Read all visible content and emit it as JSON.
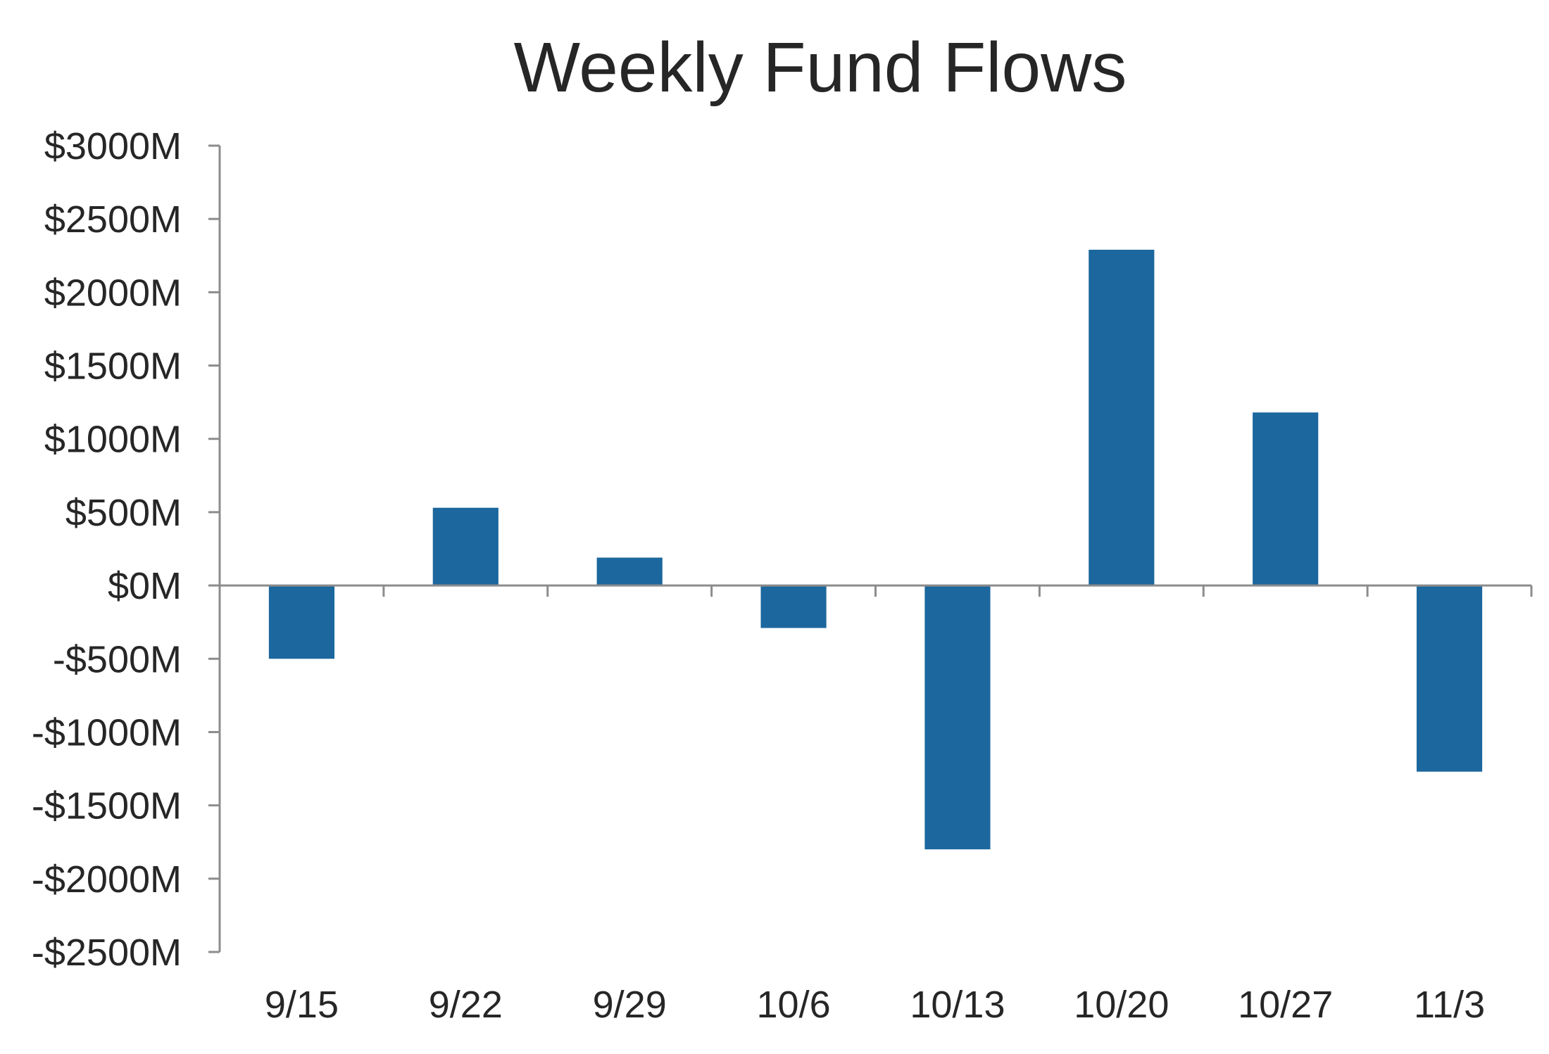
{
  "chart_data": {
    "type": "bar",
    "title": "Weekly Fund Flows",
    "xlabel": "",
    "ylabel": "",
    "categories": [
      "9/15",
      "9/22",
      "9/29",
      "10/6",
      "10/13",
      "10/20",
      "10/27",
      "11/3"
    ],
    "values": [
      -500,
      530,
      190,
      -290,
      -1800,
      2290,
      1180,
      -1270
    ],
    "ylim": [
      -2500,
      3000
    ],
    "yticks": [
      3000,
      2500,
      2000,
      1500,
      1000,
      500,
      0,
      -500,
      -1000,
      -1500,
      -2000,
      -2500
    ],
    "ytick_labels": [
      "$3000M",
      "$2500M",
      "$2000M",
      "$1500M",
      "$1000M",
      "$500M",
      "$0M",
      "-$500M",
      "-$1000M",
      "-$1500M",
      "-$2000M",
      "-$2500M"
    ],
    "grid": false,
    "legend": "none",
    "colors": {
      "bar": "#1b679e",
      "axis": "#8c8c8c",
      "text": "#262626"
    }
  }
}
